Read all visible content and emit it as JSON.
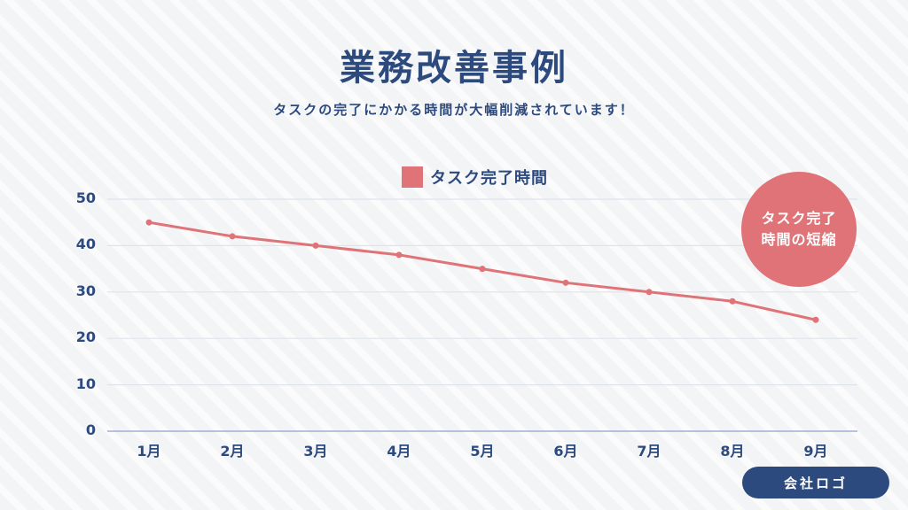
{
  "header": {
    "title": "業務改善事例",
    "subtitle": "タスクの完了にかかる時間が大幅削減されています！"
  },
  "badge": {
    "line1": "タスク完了",
    "line2": "時間の短縮",
    "color": "#e07378"
  },
  "logo_button": {
    "label": "会社ロゴ"
  },
  "colors": {
    "primary": "#2d4a7e",
    "accent": "#e07378"
  },
  "chart_data": {
    "type": "line",
    "title": "",
    "xlabel": "",
    "ylabel": "",
    "categories": [
      "1月",
      "2月",
      "3月",
      "4月",
      "5月",
      "6月",
      "7月",
      "8月",
      "9月"
    ],
    "series": [
      {
        "name": "タスク完了時間",
        "values": [
          45,
          42,
          40,
          38,
          35,
          32,
          30,
          28,
          24
        ],
        "color": "#e07378"
      }
    ],
    "yticks": [
      "0",
      "10",
      "20",
      "30",
      "40",
      "50"
    ],
    "ylim": [
      0,
      50
    ],
    "grid": true,
    "legend_position": "top-center"
  }
}
